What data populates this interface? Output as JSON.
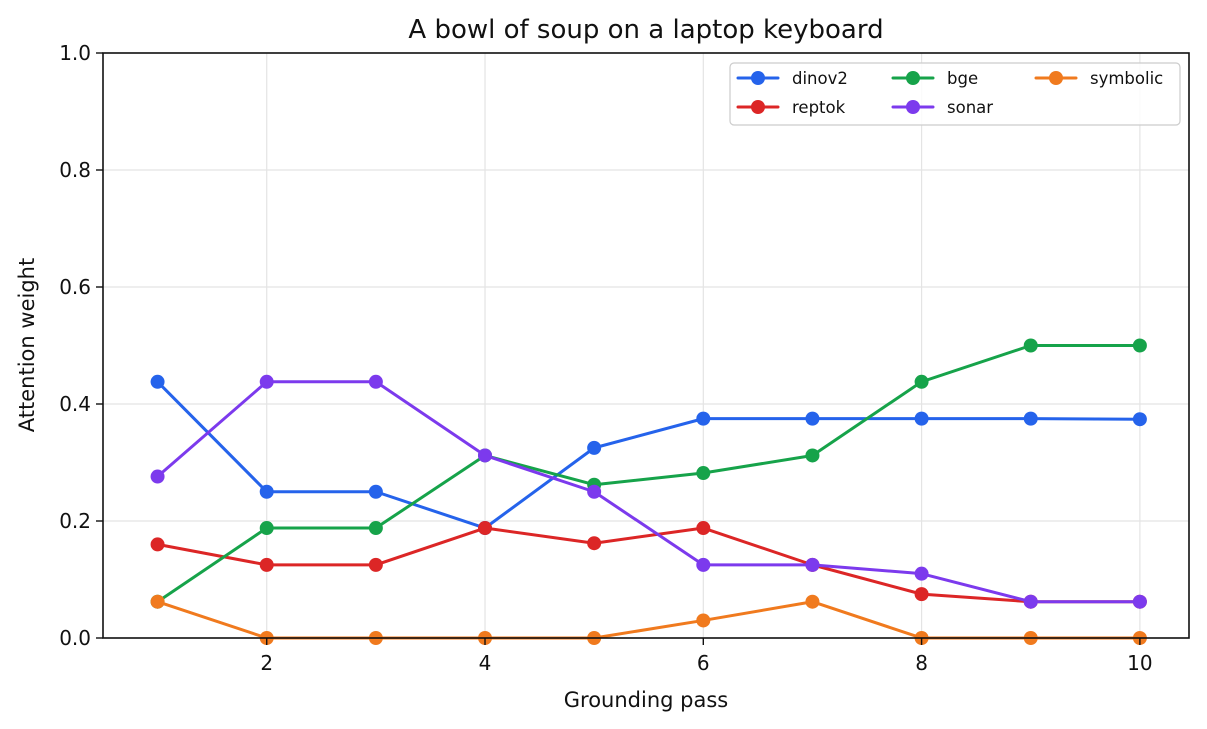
{
  "chart_data": {
    "type": "line",
    "title": "A bowl of soup on a laptop keyboard",
    "xlabel": "Grounding pass",
    "ylabel": "Attention weight",
    "x": [
      1,
      2,
      3,
      4,
      5,
      6,
      7,
      8,
      9,
      10
    ],
    "xlim": [
      0.5,
      10.45
    ],
    "ylim": [
      0,
      1.0
    ],
    "xticks": [
      2,
      4,
      6,
      8,
      10
    ],
    "xtick_labels": [
      "2",
      "4",
      "6",
      "8",
      "10"
    ],
    "yticks": [
      0,
      0.2,
      0.4,
      0.6,
      0.8,
      1.0
    ],
    "ytick_labels": [
      "0.0",
      "0.2",
      "0.4",
      "0.6",
      "0.8",
      "1.0"
    ],
    "grid": true,
    "legend_position": "top-right",
    "legend_columns": 3,
    "series": [
      {
        "name": "dinov2",
        "color": "#2563eb",
        "values": [
          0.438,
          0.25,
          0.25,
          0.188,
          0.325,
          0.375,
          0.375,
          0.375,
          0.375,
          0.374
        ]
      },
      {
        "name": "reptok",
        "color": "#dc2626",
        "values": [
          0.16,
          0.125,
          0.125,
          0.188,
          0.162,
          0.188,
          0.125,
          0.075,
          0.062,
          0.062
        ]
      },
      {
        "name": "bge",
        "color": "#16a34a",
        "values": [
          0.062,
          0.188,
          0.188,
          0.312,
          0.262,
          0.282,
          0.312,
          0.438,
          0.5,
          0.5
        ]
      },
      {
        "name": "sonar",
        "color": "#7c3aed",
        "values": [
          0.276,
          0.438,
          0.438,
          0.312,
          0.25,
          0.125,
          0.125,
          0.11,
          0.062,
          0.062
        ]
      },
      {
        "name": "symbolic",
        "color": "#f07a1e",
        "values": [
          0.062,
          0.0,
          0.0,
          0.0,
          0.0,
          0.03,
          0.062,
          0.0,
          0.0,
          0.0
        ]
      }
    ]
  }
}
